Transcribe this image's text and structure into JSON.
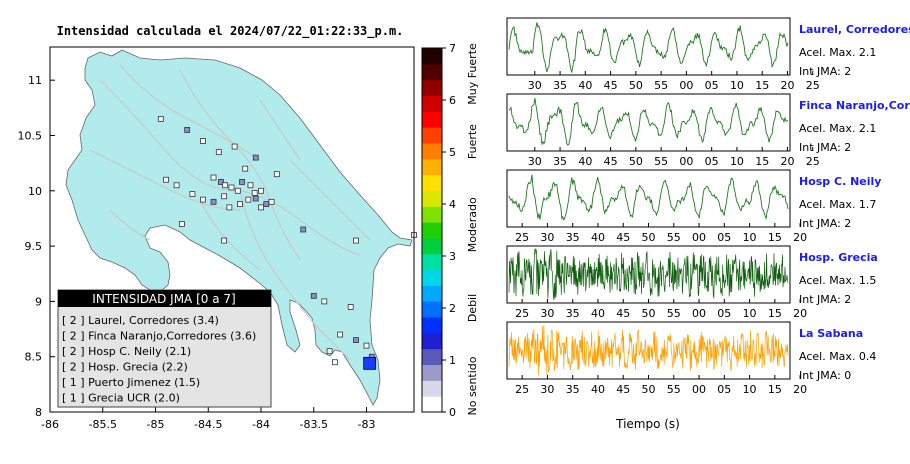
{
  "map": {
    "title": "Intensidad calculada el 2024/07/22_01:22:33_p.m.",
    "x_ticks": [
      "-86",
      "-85.5",
      "-85",
      "-84.5",
      "-84",
      "-83.5",
      "-83"
    ],
    "y_ticks": [
      "11",
      "10.5",
      "10",
      "9.5",
      "9",
      "8.5",
      "8"
    ],
    "xlim": [
      -86,
      -82.55
    ],
    "ylim": [
      8,
      11.3
    ],
    "land_color": "#b2ebeb",
    "station_markers": [
      [
        -84.95,
        10.65
      ],
      [
        -84.7,
        10.55
      ],
      [
        -84.55,
        10.45
      ],
      [
        -84.4,
        10.35
      ],
      [
        -84.25,
        10.4
      ],
      [
        -84.05,
        10.3
      ],
      [
        -83.85,
        10.15
      ],
      [
        -84.15,
        10.2
      ],
      [
        -84.45,
        10.12
      ],
      [
        -84.38,
        10.08
      ],
      [
        -84.34,
        10.05
      ],
      [
        -84.28,
        10.03
      ],
      [
        -84.22,
        10.0
      ],
      [
        -84.18,
        10.08
      ],
      [
        -84.1,
        10.05
      ],
      [
        -84.06,
        9.98
      ],
      [
        -84.0,
        10.0
      ],
      [
        -84.05,
        9.93
      ],
      [
        -84.12,
        9.92
      ],
      [
        -84.2,
        9.88
      ],
      [
        -84.35,
        9.95
      ],
      [
        -84.45,
        9.9
      ],
      [
        -84.55,
        9.92
      ],
      [
        -84.8,
        10.05
      ],
      [
        -84.65,
        9.97
      ],
      [
        -83.95,
        9.88
      ],
      [
        -83.9,
        9.9
      ],
      [
        -84.0,
        9.85
      ],
      [
        -84.3,
        9.85
      ],
      [
        -83.6,
        9.65
      ],
      [
        -83.1,
        9.55
      ],
      [
        -82.55,
        9.6
      ],
      [
        -84.35,
        9.55
      ],
      [
        -83.5,
        9.05
      ],
      [
        -83.4,
        9.0
      ],
      [
        -83.15,
        8.95
      ],
      [
        -83.25,
        8.7
      ],
      [
        -83.1,
        8.65
      ],
      [
        -83.0,
        8.6
      ],
      [
        -83.35,
        8.55
      ],
      [
        -83.3,
        8.45
      ],
      [
        -82.95,
        8.5
      ],
      [
        -84.9,
        10.1
      ],
      [
        -84.75,
        9.7
      ]
    ],
    "large_marker": [
      -82.97,
      8.44
    ],
    "colorbar": {
      "ticks": [
        "0",
        "1",
        "2",
        "3",
        "4",
        "5",
        "6",
        "7"
      ],
      "labels": [
        "No sentido",
        "Debil",
        "Moderado",
        "Fuerte",
        "Muy Fuerte"
      ],
      "colors": [
        "#ffffff",
        "#d8d8e8",
        "#9b9bc8",
        "#5a5ab8",
        "#2020d0",
        "#0030ff",
        "#0070ff",
        "#00a8ff",
        "#00d8e8",
        "#00e0a0",
        "#00d040",
        "#20d000",
        "#80e000",
        "#d8e800",
        "#ffe000",
        "#ffb000",
        "#ff8000",
        "#ff4000",
        "#ff0000",
        "#d00000",
        "#900000",
        "#500000",
        "#200000"
      ]
    },
    "legend": {
      "title": "INTENSIDAD JMA [0 a 7]",
      "items": [
        "[ 2 ]  Laurel, Corredores (3.4)",
        "[ 2 ]  Finca Naranjo,Corredores (3.6)",
        "[ 2 ]  Hosp C. Neily (2.1)",
        "[ 2 ]  Hosp. Grecia (2.2)",
        "[ 1 ]  Puerto Jimenez (1.5)",
        "[ 1 ]  Grecia UCR (2.0)"
      ]
    }
  },
  "chart_data": {
    "type": "line",
    "xlabel": "Tiempo (s)",
    "series": [
      {
        "name": "Laurel, Corredores",
        "accel": "Acel. Max. 2.1",
        "jma": "Int JMA: 2",
        "color": "#1e7a1e",
        "ticks": [
          "30",
          "35",
          "40",
          "45",
          "50",
          "55",
          "00",
          "05",
          "10",
          "15",
          "20",
          "25"
        ],
        "tick_start": 27.5,
        "style": "smooth",
        "amp": 0.85
      },
      {
        "name": "Finca Naranjo,Corredores",
        "accel": "Acel. Max. 2.1",
        "jma": "Int JMA: 2",
        "color": "#1e7a1e",
        "ticks": [
          "30",
          "35",
          "40",
          "45",
          "50",
          "55",
          "00",
          "05",
          "10",
          "15",
          "20",
          "25"
        ],
        "tick_start": 27.5,
        "style": "smooth",
        "amp": 0.8
      },
      {
        "name": "Hosp C. Neily",
        "accel": "Acel. Max. 1.7",
        "jma": "Int JMA: 2",
        "color": "#1e7a1e",
        "ticks": [
          "25",
          "30",
          "35",
          "40",
          "45",
          "50",
          "55",
          "00",
          "05",
          "10",
          "15",
          "20"
        ],
        "tick_start": 25,
        "style": "smooth",
        "amp": 0.85
      },
      {
        "name": "Hosp. Grecia",
        "accel": "Acel. Max. 1.5",
        "jma": "Int JMA: 2",
        "color": "#0e5e0e",
        "ticks": [
          "25",
          "30",
          "35",
          "40",
          "45",
          "50",
          "55",
          "00",
          "05",
          "10",
          "15",
          "20"
        ],
        "tick_start": 25,
        "style": "noisy",
        "amp": 0.9
      },
      {
        "name": "La Sabana",
        "accel": "Acel. Max. 0.4",
        "jma": "Int JMA: 0",
        "color": "#ffa000",
        "ticks": [
          "25",
          "30",
          "35",
          "40",
          "45",
          "50",
          "55",
          "00",
          "05",
          "10",
          "15",
          "20"
        ],
        "tick_start": 25,
        "style": "noisy",
        "amp": 0.8
      }
    ]
  }
}
